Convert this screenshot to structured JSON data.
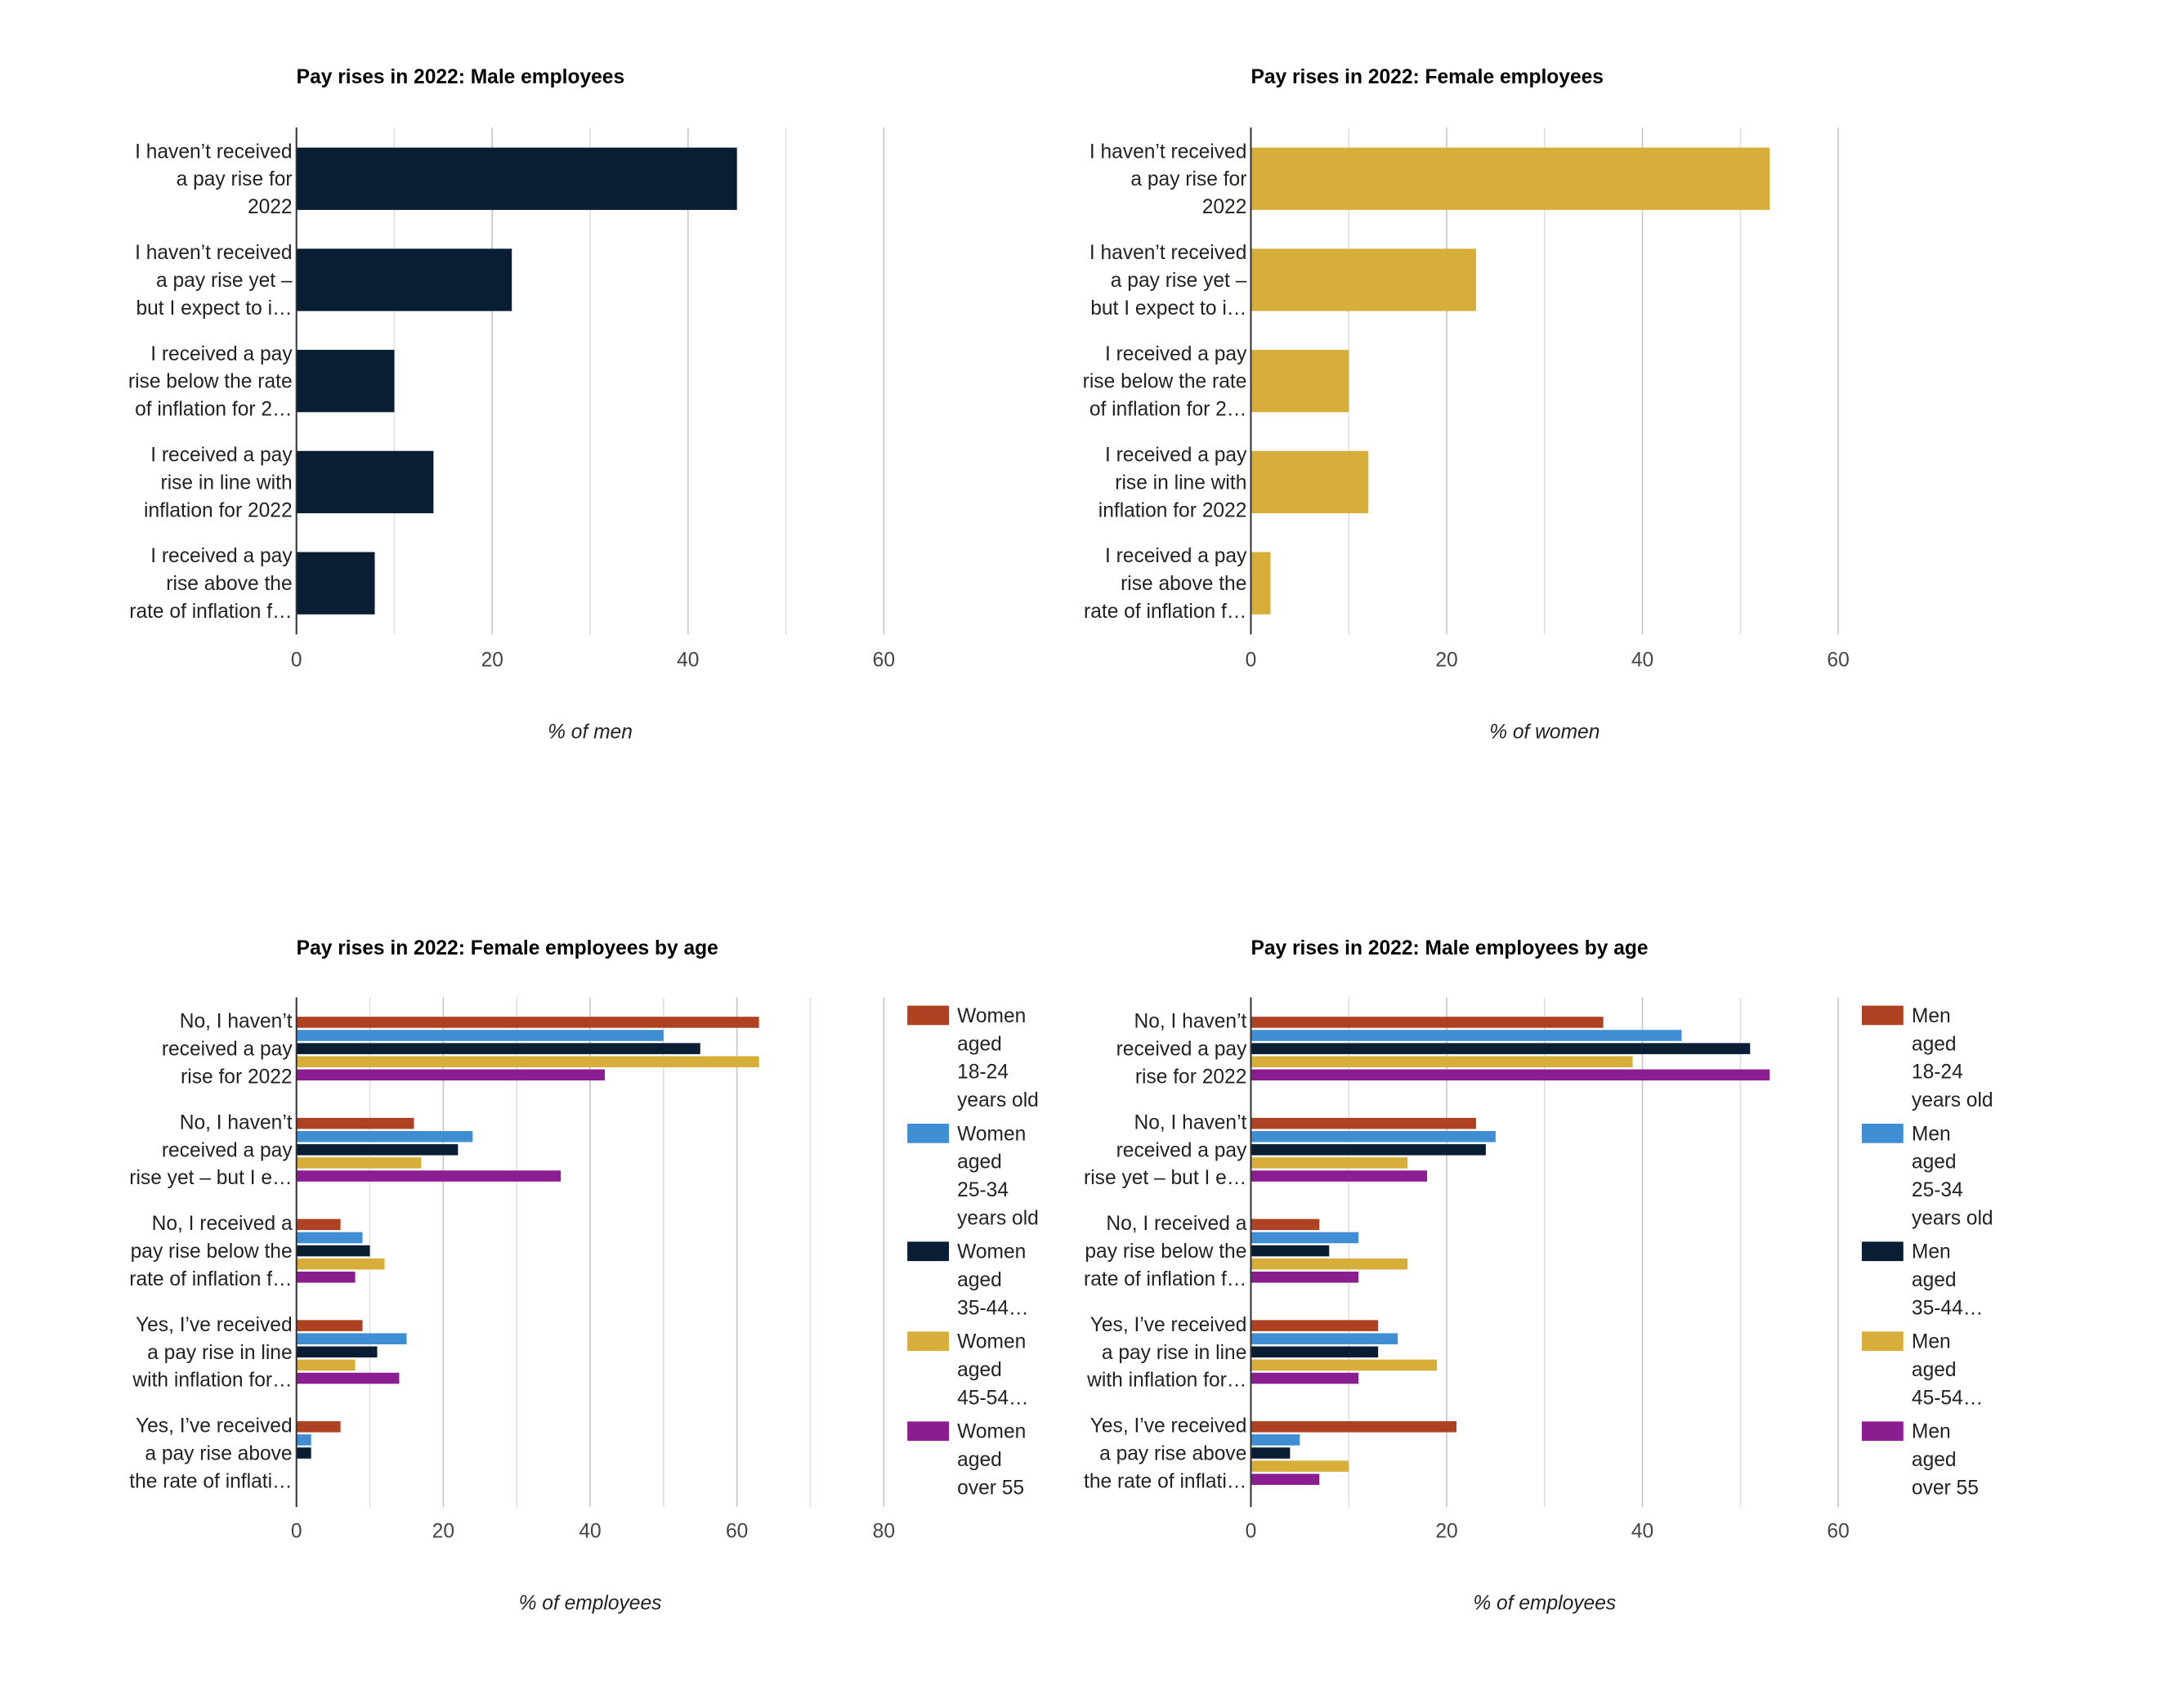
{
  "colors": {
    "18-24": "#ae4121",
    "25-34": "#3f8ed4",
    "35-44": "#0a1e33",
    "45-54": "#d8ae3a",
    "over55": "#8a1d90",
    "grid": "#d0d0d0",
    "axis": "#333333"
  },
  "chart_data": [
    {
      "type": "bar",
      "orientation": "horizontal",
      "title": "Pay rises in 2022: Male employees",
      "xlabel": "% of men",
      "xlim": [
        0,
        60
      ],
      "ticks": [
        "0",
        "20",
        "40",
        "60"
      ],
      "grid": true,
      "categories": [
        [
          "I haven’t received",
          "a pay rise for",
          "2022"
        ],
        [
          "I haven’t received",
          "a pay rise yet –",
          "but I expect to i…"
        ],
        [
          "I received a pay",
          "rise below the rate",
          "of inflation for 2…"
        ],
        [
          "I received a pay",
          "rise in line with",
          "inflation for 2022"
        ],
        [
          "I received a pay",
          "rise above the",
          "rate of inflation f…"
        ]
      ],
      "series": [
        {
          "color": "#0a1e33",
          "values": [
            45,
            22,
            10,
            14,
            8
          ]
        }
      ]
    },
    {
      "type": "bar",
      "orientation": "horizontal",
      "title": "Pay rises in 2022: Female employees",
      "xlabel": "% of women",
      "xlim": [
        0,
        60
      ],
      "ticks": [
        "0",
        "20",
        "40",
        "60"
      ],
      "grid": true,
      "categories": [
        [
          "I haven’t received",
          "a pay rise for",
          "2022"
        ],
        [
          "I haven’t received",
          "a pay rise yet –",
          "but I expect to i…"
        ],
        [
          "I received a pay",
          "rise below the rate",
          "of inflation for 2…"
        ],
        [
          "I received a pay",
          "rise in line with",
          "inflation for 2022"
        ],
        [
          "I received a pay",
          "rise above the",
          "rate of inflation f…"
        ]
      ],
      "series": [
        {
          "color": "#d8ae3a",
          "values": [
            53,
            23,
            10,
            12,
            2
          ]
        }
      ]
    },
    {
      "type": "bar",
      "orientation": "horizontal",
      "title": "Pay rises in 2022: Female employees by age",
      "xlabel": "% of employees",
      "xlim": [
        0,
        80
      ],
      "ticks": [
        "0",
        "20",
        "40",
        "60",
        "80"
      ],
      "grid": true,
      "legend_position": "right",
      "categories": [
        [
          "No, I haven’t",
          "received a pay",
          "rise for 2022"
        ],
        [
          "No, I haven’t",
          "received a pay",
          "rise yet – but I e…"
        ],
        [
          "No, I received a",
          "pay rise below the",
          "rate of inflation f…"
        ],
        [
          "Yes, I’ve received",
          "a pay rise in line",
          "with inflation for…"
        ],
        [
          "Yes, I’ve received",
          "a pay rise above",
          "the rate of inflati…"
        ]
      ],
      "series": [
        {
          "name": [
            "Women",
            "aged",
            "18-24",
            "years old"
          ],
          "color": "#ae4121",
          "values": [
            63,
            16,
            6,
            9,
            6
          ]
        },
        {
          "name": [
            "Women",
            "aged",
            "25-34",
            "years old"
          ],
          "color": "#3f8ed4",
          "values": [
            50,
            24,
            9,
            15,
            2
          ]
        },
        {
          "name": [
            "Women",
            "aged",
            "35-44…"
          ],
          "color": "#0a1e33",
          "values": [
            55,
            22,
            10,
            11,
            2
          ]
        },
        {
          "name": [
            "Women",
            "aged",
            "45-54…"
          ],
          "color": "#d8ae3a",
          "values": [
            63,
            17,
            12,
            8,
            0
          ]
        },
        {
          "name": [
            "Women",
            "aged",
            "over 55"
          ],
          "color": "#8a1d90",
          "values": [
            42,
            36,
            8,
            14,
            0
          ]
        }
      ]
    },
    {
      "type": "bar",
      "orientation": "horizontal",
      "title": "Pay rises in 2022: Male employees by age",
      "xlabel": "% of employees",
      "xlim": [
        0,
        60
      ],
      "ticks": [
        "0",
        "20",
        "40",
        "60"
      ],
      "grid": true,
      "legend_position": "right",
      "categories": [
        [
          "No, I haven’t",
          "received a pay",
          "rise for 2022"
        ],
        [
          "No, I haven’t",
          "received a pay",
          "rise yet – but I e…"
        ],
        [
          "No, I received a",
          "pay rise below the",
          "rate of inflation f…"
        ],
        [
          "Yes, I’ve received",
          "a pay rise in line",
          "with inflation for…"
        ],
        [
          "Yes, I’ve received",
          "a pay rise above",
          "the rate of inflati…"
        ]
      ],
      "series": [
        {
          "name": [
            "Men",
            "aged",
            "18-24",
            "years old"
          ],
          "color": "#ae4121",
          "values": [
            36,
            23,
            7,
            13,
            21
          ]
        },
        {
          "name": [
            "Men",
            "aged",
            "25-34",
            "years old"
          ],
          "color": "#3f8ed4",
          "values": [
            44,
            25,
            11,
            15,
            5
          ]
        },
        {
          "name": [
            "Men",
            "aged",
            "35-44…"
          ],
          "color": "#0a1e33",
          "values": [
            51,
            24,
            8,
            13,
            4
          ]
        },
        {
          "name": [
            "Men",
            "aged",
            "45-54…"
          ],
          "color": "#d8ae3a",
          "values": [
            39,
            16,
            16,
            19,
            10
          ]
        },
        {
          "name": [
            "Men",
            "aged",
            "over 55"
          ],
          "color": "#8a1d90",
          "values": [
            53,
            18,
            11,
            11,
            7
          ]
        }
      ]
    }
  ]
}
